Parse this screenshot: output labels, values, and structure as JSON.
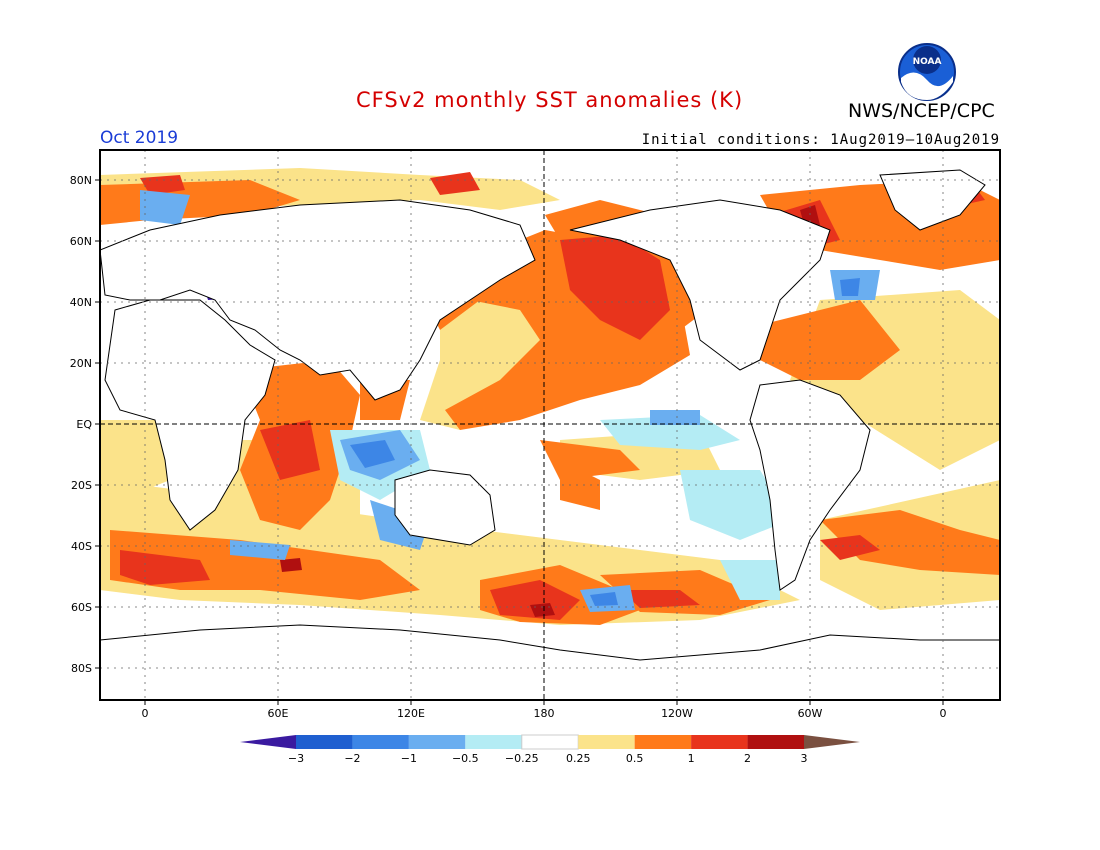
{
  "title": "CFSv2 monthly SST anomalies (K)",
  "agency": "NWS/NCEP/CPC",
  "logo_text": "NOAA",
  "month": "Oct 2019",
  "initial_conditions": "Initial conditions: 1Aug2019–10Aug2019",
  "lat_labels": [
    "80N",
    "60N",
    "40N",
    "20N",
    "EQ",
    "20S",
    "40S",
    "60S",
    "80S"
  ],
  "lon_labels": [
    "0",
    "60E",
    "120E",
    "180",
    "120W",
    "60W",
    "0"
  ],
  "colorbar": {
    "labels": [
      "−3",
      "−2",
      "−1",
      "−0.5",
      "−0.25",
      "0.25",
      "0.5",
      "1",
      "2",
      "3"
    ],
    "colors": [
      "#3a1aa0",
      "#1f5fd0",
      "#3d86e6",
      "#6aaef0",
      "#b4ecf4",
      "#ffffff",
      "#fbe38a",
      "#ff7a1a",
      "#e8341c",
      "#b01010",
      "#7a5040"
    ]
  },
  "colors": {
    "title": "#d40000",
    "month": "#1a3cd6"
  }
}
